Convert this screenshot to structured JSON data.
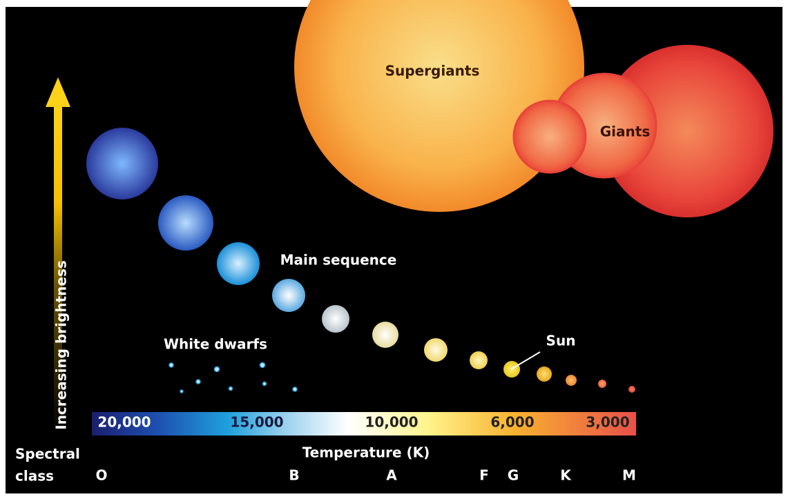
{
  "labels": {
    "supergiants": "Supergiants",
    "giants": "Giants",
    "main_sequence": "Main sequence",
    "white_dwarfs": "White dwarfs",
    "sun": "Sun",
    "brightness": "Increasing brightness"
  },
  "temperature_scale": {
    "title": "Temperature (K)",
    "labels": [
      "20,000",
      "15,000",
      "10,000",
      "6,000",
      "3,000"
    ]
  },
  "spectral": {
    "label": [
      "Spectral",
      "class"
    ],
    "classes": [
      "O",
      "B",
      "A",
      "F",
      "G",
      "K",
      "M"
    ]
  }
}
